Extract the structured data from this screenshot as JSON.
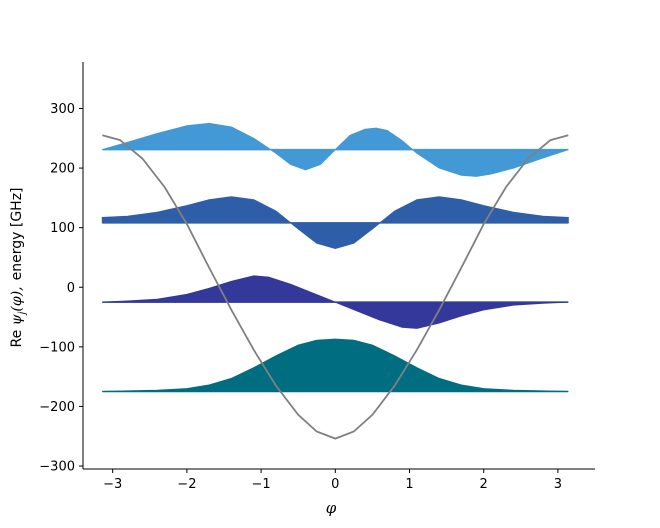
{
  "chart_data": {
    "type": "area",
    "xlabel": "φ",
    "ylabel_parts": {
      "re": "Re ",
      "psi": "ψ",
      "sub": "j",
      "arg": "(φ),",
      "rest": "energy [GHz]"
    },
    "xlim": [
      -3.4,
      3.5
    ],
    "ylim": [
      -305,
      378
    ],
    "xticks": [
      -3,
      -2,
      -1,
      0,
      1,
      2,
      3
    ],
    "xtick_labels": [
      "−3",
      "−2",
      "−1",
      "0",
      "1",
      "2",
      "3"
    ],
    "yticks": [
      -300,
      -200,
      -100,
      0,
      100,
      200,
      300
    ],
    "ytick_labels": [
      "−300",
      "−200",
      "−100",
      "0",
      "100",
      "200",
      "300"
    ],
    "potential": {
      "color": "#808080",
      "x": [
        -3.14,
        -2.9,
        -2.6,
        -2.3,
        -2.0,
        -1.7,
        -1.4,
        -1.1,
        -0.8,
        -0.5,
        -0.25,
        0.0,
        0.25,
        0.5,
        0.8,
        1.1,
        1.4,
        1.7,
        2.0,
        2.3,
        2.6,
        2.9,
        3.14
      ],
      "y": [
        255,
        247,
        216,
        168,
        106,
        33,
        -38,
        -105,
        -165,
        -214,
        -242,
        -254,
        -242,
        -214,
        -165,
        -105,
        -38,
        33,
        106,
        168,
        216,
        247,
        255
      ]
    },
    "series": [
      {
        "baseline": -175,
        "color": "#006d80",
        "x": [
          -3.14,
          -2.8,
          -2.4,
          -2.0,
          -1.7,
          -1.4,
          -1.1,
          -0.8,
          -0.5,
          -0.25,
          0.0,
          0.25,
          0.5,
          0.8,
          1.1,
          1.4,
          1.7,
          2.0,
          2.4,
          2.8,
          3.14
        ],
        "y": [
          -175,
          -174,
          -173,
          -170,
          -164,
          -153,
          -135,
          -115,
          -97,
          -89,
          -87,
          -89,
          -97,
          -115,
          -135,
          -153,
          -164,
          -170,
          -173,
          -174,
          -175
        ]
      },
      {
        "baseline": -25,
        "color": "#33389a",
        "x": [
          -3.14,
          -2.8,
          -2.4,
          -2.0,
          -1.7,
          -1.4,
          -1.1,
          -0.9,
          -0.6,
          -0.3,
          0.0,
          0.3,
          0.6,
          0.9,
          1.1,
          1.4,
          1.7,
          2.0,
          2.4,
          2.8,
          3.14
        ],
        "y": [
          -25,
          -23,
          -20,
          -12,
          -2,
          10,
          19,
          17,
          5,
          -10,
          -25,
          -40,
          -55,
          -67,
          -69,
          -60,
          -48,
          -38,
          -30,
          -27,
          -25
        ]
      },
      {
        "baseline": 108,
        "color": "#2f5ea8",
        "x": [
          -3.14,
          -2.8,
          -2.4,
          -2.0,
          -1.7,
          -1.4,
          -1.1,
          -0.8,
          -0.5,
          -0.25,
          0.0,
          0.25,
          0.5,
          0.8,
          1.1,
          1.4,
          1.7,
          2.0,
          2.4,
          2.8,
          3.14
        ],
        "y": [
          117,
          119,
          126,
          137,
          147,
          152,
          147,
          128,
          98,
          74,
          65,
          74,
          98,
          128,
          147,
          152,
          147,
          137,
          126,
          119,
          117
        ]
      },
      {
        "baseline": 231,
        "color": "#4299d6",
        "x": [
          -3.14,
          -2.8,
          -2.4,
          -2.0,
          -1.7,
          -1.4,
          -1.1,
          -0.8,
          -0.6,
          -0.4,
          -0.2,
          0.0,
          0.2,
          0.4,
          0.55,
          0.7,
          0.9,
          1.1,
          1.4,
          1.7,
          1.9,
          2.1,
          2.4,
          2.8,
          3.14
        ],
        "y": [
          231,
          243,
          258,
          271,
          275,
          269,
          250,
          225,
          206,
          197,
          206,
          231,
          255,
          265,
          267,
          263,
          246,
          225,
          200,
          188,
          186,
          190,
          200,
          217,
          231
        ]
      }
    ]
  }
}
